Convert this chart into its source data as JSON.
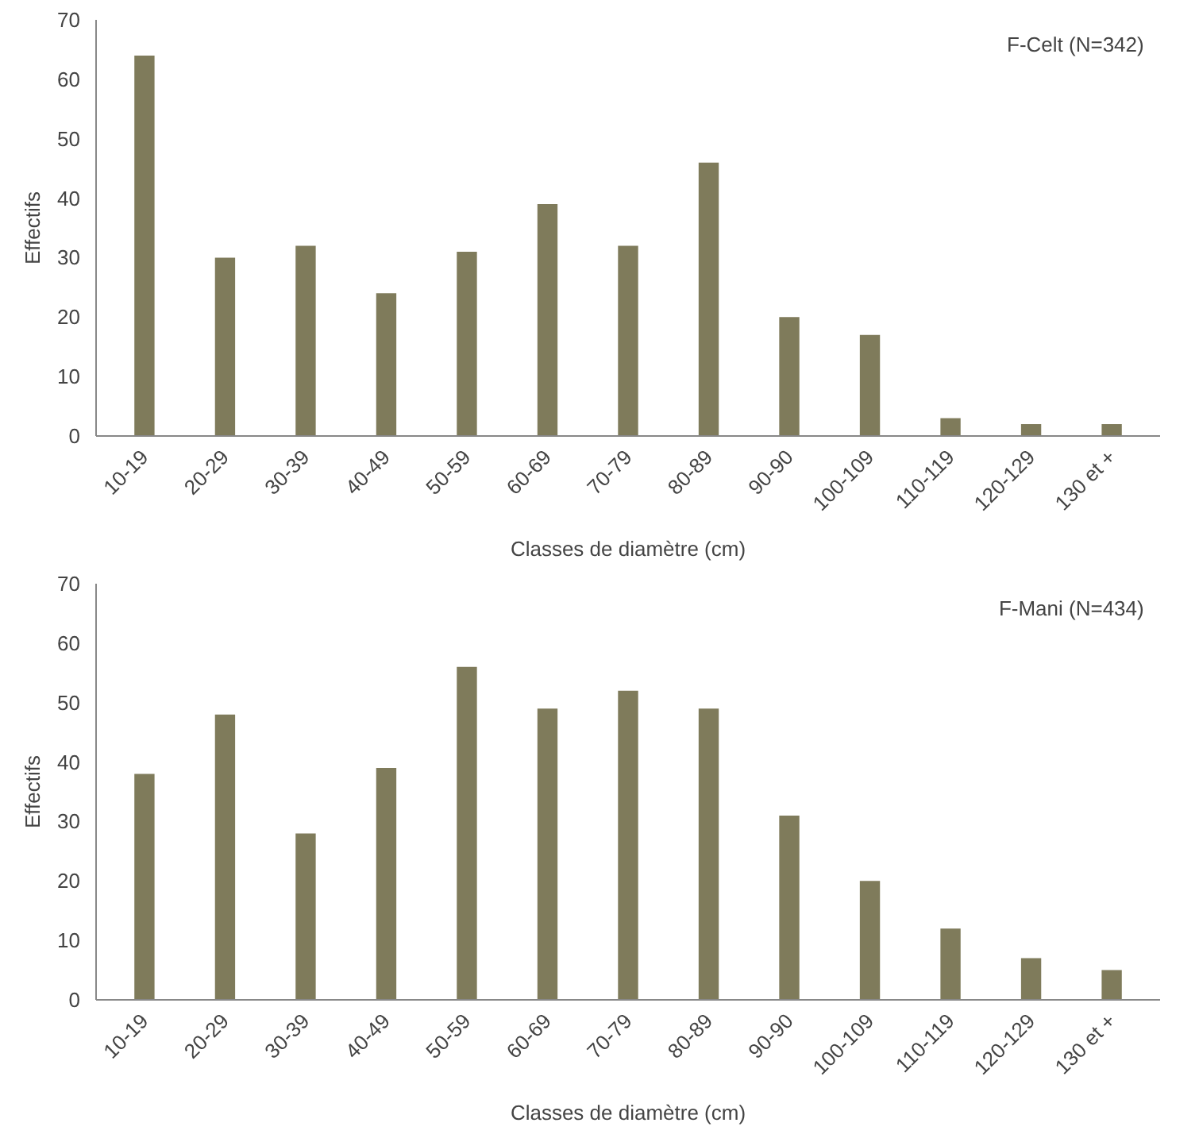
{
  "chart_data": [
    {
      "type": "bar",
      "categories": [
        "10-19",
        "20-29",
        "30-39",
        "40-49",
        "50-59",
        "60-69",
        "70-79",
        "80-89",
        "90-90",
        "100-109",
        "110-119",
        "120-129",
        "130 et +"
      ],
      "values": [
        64,
        30,
        32,
        24,
        31,
        39,
        32,
        46,
        20,
        17,
        3,
        2,
        2
      ],
      "color": "#7f7b5b",
      "xlabel": "Classes de diamètre (cm)",
      "ylabel": "Effectifs",
      "ylim": [
        0,
        70
      ],
      "yticks": [
        0,
        10,
        20,
        30,
        40,
        50,
        60,
        70
      ],
      "grid": false,
      "annotations": [
        "F-Celt (N=342)"
      ]
    },
    {
      "type": "bar",
      "categories": [
        "10-19",
        "20-29",
        "30-39",
        "40-49",
        "50-59",
        "60-69",
        "70-79",
        "80-89",
        "90-90",
        "100-109",
        "110-119",
        "120-129",
        "130 et +"
      ],
      "values": [
        38,
        48,
        28,
        39,
        56,
        49,
        52,
        49,
        31,
        20,
        12,
        7,
        5
      ],
      "color": "#7f7b5b",
      "xlabel": "Classes de diamètre (cm)",
      "ylabel": "Effectifs",
      "ylim": [
        0,
        70
      ],
      "yticks": [
        0,
        10,
        20,
        30,
        40,
        50,
        60,
        70
      ],
      "grid": false,
      "annotations": [
        "F-Mani (N=434)"
      ]
    }
  ]
}
